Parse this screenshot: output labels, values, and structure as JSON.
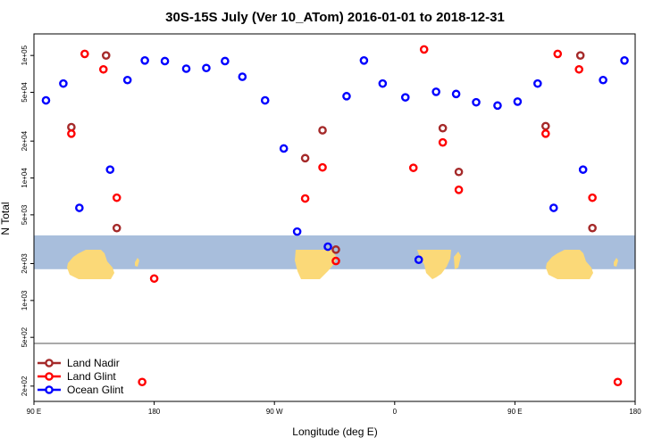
{
  "chart_data": {
    "type": "scatter",
    "title": "30S-15S July (Ver 10_ATom)   2016-01-01 to 2018-12-31",
    "xlabel": "Longitude (deg E)",
    "ylabel": "N Total",
    "x_scale": "longitude, 90 E to 180 (through 180, 90 W, 0, 90 E, 180)",
    "y_scale": "log",
    "xlim": [
      90,
      540
    ],
    "ylim": [
      150,
      150000
    ],
    "x_ticks": [
      {
        "value": 90,
        "label": "90 E"
      },
      {
        "value": 180,
        "label": "180"
      },
      {
        "value": 270,
        "label": "90 W"
      },
      {
        "value": 360,
        "label": "0"
      },
      {
        "value": 450,
        "label": "90 E"
      },
      {
        "value": 540,
        "label": "180"
      }
    ],
    "y_ticks": [
      {
        "value": 200,
        "label": "2e+02"
      },
      {
        "value": 500,
        "label": "5e+02"
      },
      {
        "value": 1000,
        "label": "1e+03"
      },
      {
        "value": 2000,
        "label": "2e+03"
      },
      {
        "value": 5000,
        "label": "5e+03"
      },
      {
        "value": 10000,
        "label": "1e+04"
      },
      {
        "value": 20000,
        "label": "2e+04"
      },
      {
        "value": 50000,
        "label": "5e+04"
      },
      {
        "value": 100000,
        "label": "1e+05"
      }
    ],
    "map_band": {
      "y_from": 1800,
      "y_to": 3400
    },
    "legend_position": "bottom-left",
    "series": [
      {
        "name": "Land Nadir",
        "color": "#a52a2a",
        "points": [
          {
            "x": 118,
            "y": 26000
          },
          {
            "x": 144,
            "y": 100000
          },
          {
            "x": 152,
            "y": 3900
          },
          {
            "x": 293,
            "y": 14500
          },
          {
            "x": 306,
            "y": 24500
          },
          {
            "x": 316,
            "y": 2600
          },
          {
            "x": 396,
            "y": 25500
          },
          {
            "x": 408,
            "y": 11200
          },
          {
            "x": 473,
            "y": 26500
          },
          {
            "x": 499,
            "y": 100000
          },
          {
            "x": 508,
            "y": 3900
          }
        ]
      },
      {
        "name": "Land Glint",
        "color": "#ff0000",
        "points": [
          {
            "x": 118,
            "y": 23000
          },
          {
            "x": 128,
            "y": 103000
          },
          {
            "x": 142,
            "y": 77000
          },
          {
            "x": 152,
            "y": 6900
          },
          {
            "x": 180,
            "y": 1510
          },
          {
            "x": 171,
            "y": 216
          },
          {
            "x": 293,
            "y": 6800
          },
          {
            "x": 306,
            "y": 12200
          },
          {
            "x": 316,
            "y": 2100
          },
          {
            "x": 374,
            "y": 12100
          },
          {
            "x": 382,
            "y": 112000
          },
          {
            "x": 396,
            "y": 19500
          },
          {
            "x": 408,
            "y": 8000
          },
          {
            "x": 473,
            "y": 23000
          },
          {
            "x": 482,
            "y": 103000
          },
          {
            "x": 498,
            "y": 77000
          },
          {
            "x": 508,
            "y": 6900
          },
          {
            "x": 527,
            "y": 216
          }
        ]
      },
      {
        "name": "Ocean Glint",
        "color": "#0000ff",
        "points": [
          {
            "x": 99,
            "y": 43000
          },
          {
            "x": 112,
            "y": 59000
          },
          {
            "x": 124,
            "y": 5700
          },
          {
            "x": 147,
            "y": 11700
          },
          {
            "x": 160,
            "y": 63000
          },
          {
            "x": 173,
            "y": 91000
          },
          {
            "x": 188,
            "y": 90000
          },
          {
            "x": 204,
            "y": 78000
          },
          {
            "x": 219,
            "y": 79000
          },
          {
            "x": 233,
            "y": 90000
          },
          {
            "x": 246,
            "y": 67000
          },
          {
            "x": 263,
            "y": 43000
          },
          {
            "x": 277,
            "y": 17400
          },
          {
            "x": 287,
            "y": 3650
          },
          {
            "x": 310,
            "y": 2750
          },
          {
            "x": 324,
            "y": 46500
          },
          {
            "x": 337,
            "y": 91000
          },
          {
            "x": 351,
            "y": 59000
          },
          {
            "x": 368,
            "y": 45500
          },
          {
            "x": 378,
            "y": 2150
          },
          {
            "x": 391,
            "y": 50500
          },
          {
            "x": 406,
            "y": 48500
          },
          {
            "x": 421,
            "y": 41500
          },
          {
            "x": 437,
            "y": 39000
          },
          {
            "x": 452,
            "y": 42000
          },
          {
            "x": 467,
            "y": 59000
          },
          {
            "x": 479,
            "y": 5700
          },
          {
            "x": 501,
            "y": 11700
          },
          {
            "x": 516,
            "y": 63000
          },
          {
            "x": 532,
            "y": 91000
          }
        ]
      }
    ]
  }
}
